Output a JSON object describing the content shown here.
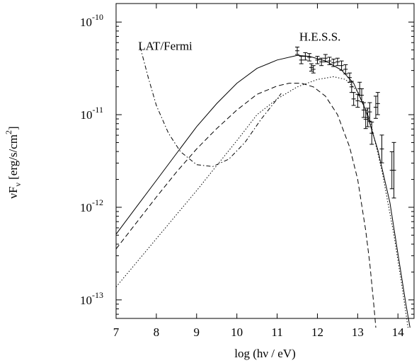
{
  "chart_data": {
    "type": "line",
    "xlabel": "log (hν / eV)",
    "ylabel": {
      "base": "νF",
      "subscript": "ν",
      "units": " [erg/s/cm",
      "units_sup": "2",
      "units_close": "]"
    },
    "x_range": [
      7,
      14.4
    ],
    "y_log_range": [
      -13.2,
      -9.8
    ],
    "x_ticks": [
      {
        "value": 7,
        "label": "7"
      },
      {
        "value": 8,
        "label": "8"
      },
      {
        "value": 9,
        "label": "9"
      },
      {
        "value": 10,
        "label": "10"
      },
      {
        "value": 11,
        "label": "11"
      },
      {
        "value": 12,
        "label": "12"
      },
      {
        "value": 13,
        "label": "13"
      },
      {
        "value": 14,
        "label": "14"
      }
    ],
    "y_ticks": [
      {
        "value": -10,
        "base": "10",
        "exp": "-10"
      },
      {
        "value": -11,
        "base": "10",
        "exp": "-11"
      },
      {
        "value": -12,
        "base": "10",
        "exp": "-12"
      },
      {
        "value": -13,
        "base": "10",
        "exp": "-13"
      }
    ],
    "annotations": [
      {
        "text": "LAT/Fermi",
        "x": 7.55,
        "y": -10.3
      },
      {
        "text": "H.E.S.S.",
        "x": 11.55,
        "y": -10.2
      }
    ],
    "series": [
      {
        "style": "solid",
        "points": [
          [
            7.0,
            -12.29
          ],
          [
            7.5,
            -12.0
          ],
          [
            8.0,
            -11.71
          ],
          [
            8.5,
            -11.42
          ],
          [
            9.0,
            -11.13
          ],
          [
            9.5,
            -10.88
          ],
          [
            10.0,
            -10.66
          ],
          [
            10.5,
            -10.5
          ],
          [
            11.0,
            -10.41
          ],
          [
            11.5,
            -10.36
          ],
          [
            11.8,
            -10.37
          ],
          [
            12.2,
            -10.42
          ],
          [
            12.6,
            -10.52
          ],
          [
            12.9,
            -10.66
          ],
          [
            13.2,
            -10.95
          ],
          [
            13.5,
            -11.38
          ],
          [
            13.8,
            -11.95
          ],
          [
            14.0,
            -12.5
          ],
          [
            14.2,
            -13.05
          ],
          [
            14.3,
            -13.3
          ]
        ]
      },
      {
        "style": "dashed",
        "points": [
          [
            7.0,
            -12.45
          ],
          [
            7.5,
            -12.17
          ],
          [
            8.0,
            -11.89
          ],
          [
            8.5,
            -11.62
          ],
          [
            9.0,
            -11.37
          ],
          [
            9.5,
            -11.15
          ],
          [
            10.0,
            -10.95
          ],
          [
            10.5,
            -10.78
          ],
          [
            11.0,
            -10.69
          ],
          [
            11.3,
            -10.66
          ],
          [
            11.6,
            -10.66
          ],
          [
            11.9,
            -10.7
          ],
          [
            12.2,
            -10.8
          ],
          [
            12.5,
            -11.0
          ],
          [
            12.8,
            -11.35
          ],
          [
            13.0,
            -11.7
          ],
          [
            13.2,
            -12.25
          ],
          [
            13.3,
            -12.6
          ],
          [
            13.4,
            -13.05
          ],
          [
            13.45,
            -13.3
          ]
        ]
      },
      {
        "style": "dotted",
        "points": [
          [
            7.0,
            -12.86
          ],
          [
            7.5,
            -12.6
          ],
          [
            8.0,
            -12.34
          ],
          [
            8.5,
            -12.08
          ],
          [
            9.0,
            -11.82
          ],
          [
            9.5,
            -11.55
          ],
          [
            10.0,
            -11.28
          ],
          [
            10.5,
            -11.0
          ],
          [
            11.0,
            -10.83
          ],
          [
            11.5,
            -10.7
          ],
          [
            12.0,
            -10.62
          ],
          [
            12.4,
            -10.59
          ],
          [
            12.7,
            -10.62
          ],
          [
            13.0,
            -10.75
          ],
          [
            13.3,
            -11.05
          ],
          [
            13.6,
            -11.6
          ],
          [
            13.9,
            -12.3
          ],
          [
            14.1,
            -12.85
          ],
          [
            14.25,
            -13.3
          ]
        ]
      },
      {
        "style": "dashdot",
        "points": [
          [
            7.6,
            -10.27
          ],
          [
            7.8,
            -10.6
          ],
          [
            8.0,
            -10.9
          ],
          [
            8.3,
            -11.2
          ],
          [
            8.6,
            -11.4
          ],
          [
            9.0,
            -11.54
          ],
          [
            9.4,
            -11.56
          ],
          [
            9.8,
            -11.48
          ],
          [
            10.2,
            -11.3
          ],
          [
            10.6,
            -11.05
          ],
          [
            11.0,
            -10.83
          ],
          [
            11.1,
            -10.77
          ]
        ]
      }
    ],
    "hess_points": [
      {
        "x": 11.5,
        "y": -10.31,
        "err": 0.04
      },
      {
        "x": 11.6,
        "y": -10.41,
        "err": 0.04
      },
      {
        "x": 11.7,
        "y": -10.37,
        "err": 0.04
      },
      {
        "x": 11.8,
        "y": -10.38,
        "err": 0.04
      },
      {
        "x": 11.85,
        "y": -10.49,
        "err": 0.04
      },
      {
        "x": 11.9,
        "y": -10.51,
        "err": 0.04
      },
      {
        "x": 12.0,
        "y": -10.41,
        "err": 0.04
      },
      {
        "x": 12.1,
        "y": -10.43,
        "err": 0.04
      },
      {
        "x": 12.2,
        "y": -10.39,
        "err": 0.04
      },
      {
        "x": 12.3,
        "y": -10.42,
        "err": 0.04
      },
      {
        "x": 12.4,
        "y": -10.44,
        "err": 0.04
      },
      {
        "x": 12.5,
        "y": -10.43,
        "err": 0.04
      },
      {
        "x": 12.6,
        "y": -10.47,
        "err": 0.05
      },
      {
        "x": 12.7,
        "y": -10.51,
        "err": 0.05
      },
      {
        "x": 12.8,
        "y": -10.6,
        "err": 0.05
      },
      {
        "x": 12.85,
        "y": -10.7,
        "err": 0.06
      },
      {
        "x": 12.9,
        "y": -10.83,
        "err": 0.07
      },
      {
        "x": 13.0,
        "y": -10.85,
        "err": 0.07
      },
      {
        "x": 13.05,
        "y": -10.72,
        "err": 0.07
      },
      {
        "x": 13.1,
        "y": -10.79,
        "err": 0.07
      },
      {
        "x": 13.15,
        "y": -10.95,
        "err": 0.08
      },
      {
        "x": 13.2,
        "y": -11.05,
        "err": 0.1
      },
      {
        "x": 13.25,
        "y": -11.03,
        "err": 0.1
      },
      {
        "x": 13.3,
        "y": -10.97,
        "err": 0.1
      },
      {
        "x": 13.35,
        "y": -11.2,
        "err": 0.12
      },
      {
        "x": 13.45,
        "y": -10.92,
        "err": 0.12
      },
      {
        "x": 13.5,
        "y": -10.88,
        "err": 0.12
      },
      {
        "x": 13.6,
        "y": -11.37,
        "err": 0.15
      },
      {
        "x": 13.85,
        "y": -11.6,
        "err": 0.2
      },
      {
        "x": 13.9,
        "y": -11.6,
        "err": 0.3
      }
    ]
  }
}
